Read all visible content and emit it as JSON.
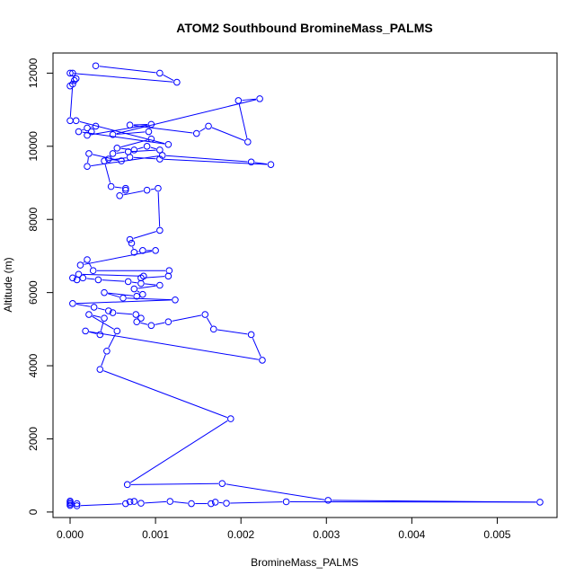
{
  "chart_data": {
    "type": "line",
    "title": "ATOM2 Southbound BromineMass_PALMS",
    "xlabel": "BromineMass_PALMS",
    "ylabel": "Altitude (m)",
    "xlim": [
      -0.0002,
      0.0057
    ],
    "ylim": [
      -150,
      12550
    ],
    "xticks": [
      0.0,
      0.001,
      0.002,
      0.003,
      0.004,
      0.005
    ],
    "xtick_labels": [
      "0.000",
      "0.001",
      "0.002",
      "0.003",
      "0.004",
      "0.005"
    ],
    "yticks": [
      0,
      2000,
      4000,
      6000,
      8000,
      10000,
      12000
    ],
    "ytick_labels": [
      "0",
      "2000",
      "4000",
      "6000",
      "8000",
      "10000",
      "12000"
    ],
    "grid": false,
    "legend": "none",
    "marker": "open-circle",
    "series": [
      {
        "color": "#0000ff",
        "points": [
          [
            0.0003,
            12200
          ],
          [
            0.00105,
            12000
          ],
          [
            0.00125,
            11750
          ],
          [
            0.0,
            12000
          ],
          [
            3e-05,
            12000
          ],
          [
            5e-05,
            11800
          ],
          [
            7e-05,
            11850
          ],
          [
            0.0,
            11650
          ],
          [
            3e-05,
            11700
          ],
          [
            0.0,
            10700
          ],
          [
            7e-05,
            10700
          ],
          [
            0.00115,
            10050
          ],
          [
            0.0001,
            10400
          ],
          [
            0.0002,
            10500
          ],
          [
            0.0003,
            10550
          ],
          [
            0.00025,
            10400
          ],
          [
            0.0002,
            10300
          ],
          [
            0.00095,
            10600
          ],
          [
            0.0007,
            10580
          ],
          [
            0.00148,
            10350
          ],
          [
            0.00162,
            10550
          ],
          [
            0.00208,
            10120
          ],
          [
            0.00197,
            11250
          ],
          [
            0.00222,
            11300
          ],
          [
            0.0005,
            10320
          ],
          [
            0.00092,
            10400
          ],
          [
            0.00095,
            10200
          ],
          [
            0.00055,
            9950
          ],
          [
            0.00075,
            9900
          ],
          [
            0.0009,
            10000
          ],
          [
            0.00105,
            9900
          ],
          [
            0.00068,
            9850
          ],
          [
            0.0005,
            9800
          ],
          [
            0.00045,
            9650
          ],
          [
            0.0006,
            9600
          ],
          [
            0.00022,
            9800
          ],
          [
            0.0002,
            9450
          ],
          [
            0.00108,
            9750
          ],
          [
            0.00212,
            9570
          ],
          [
            0.00235,
            9500
          ],
          [
            0.00105,
            9650
          ],
          [
            0.0007,
            9700
          ],
          [
            0.0004,
            9600
          ],
          [
            0.00048,
            8900
          ],
          [
            0.00065,
            8850
          ],
          [
            0.00065,
            8800
          ],
          [
            0.00058,
            8650
          ],
          [
            0.0009,
            8800
          ],
          [
            0.00103,
            8850
          ],
          [
            0.00105,
            7700
          ],
          [
            0.0007,
            7450
          ],
          [
            0.00072,
            7350
          ],
          [
            0.00075,
            7100
          ],
          [
            0.00085,
            7150
          ],
          [
            0.001,
            7150
          ],
          [
            0.00012,
            6750
          ],
          [
            0.0002,
            6900
          ],
          [
            0.00027,
            6600
          ],
          [
            0.00116,
            6600
          ],
          [
            0.00115,
            6450
          ],
          [
            0.00083,
            6400
          ],
          [
            0.00086,
            6450
          ],
          [
            0.0001,
            6500
          ],
          [
            3e-05,
            6400
          ],
          [
            8e-05,
            6350
          ],
          [
            0.00015,
            6400
          ],
          [
            0.00033,
            6350
          ],
          [
            0.00068,
            6300
          ],
          [
            0.00083,
            6250
          ],
          [
            0.00105,
            6200
          ],
          [
            0.00075,
            6100
          ],
          [
            0.00085,
            5950
          ],
          [
            0.00078,
            5900
          ],
          [
            0.0004,
            6000
          ],
          [
            0.00062,
            5850
          ],
          [
            0.00123,
            5800
          ],
          [
            3e-05,
            5700
          ],
          [
            0.00028,
            5600
          ],
          [
            0.00045,
            5500
          ],
          [
            0.0005,
            5450
          ],
          [
            0.00077,
            5400
          ],
          [
            0.00083,
            5300
          ],
          [
            0.00078,
            5200
          ],
          [
            0.00095,
            5100
          ],
          [
            0.00115,
            5200
          ],
          [
            0.00158,
            5400
          ],
          [
            0.00168,
            5000
          ],
          [
            0.00212,
            4850
          ],
          [
            0.00225,
            4150
          ],
          [
            0.00018,
            4950
          ],
          [
            0.00035,
            4850
          ],
          [
            0.0004,
            5300
          ],
          [
            0.00022,
            5400
          ],
          [
            0.00055,
            4950
          ],
          [
            0.00043,
            4400
          ],
          [
            0.00035,
            3900
          ],
          [
            0.00188,
            2550
          ],
          [
            0.00067,
            750
          ],
          [
            0.00178,
            780
          ],
          [
            0.00302,
            320
          ],
          [
            0.0055,
            270
          ],
          [
            0.00253,
            280
          ],
          [
            0.00183,
            240
          ],
          [
            0.0017,
            270
          ],
          [
            0.00165,
            230
          ],
          [
            0.00142,
            230
          ],
          [
            0.00117,
            290
          ],
          [
            0.00083,
            240
          ],
          [
            0.00075,
            290
          ],
          [
            0.0007,
            280
          ],
          [
            0.00065,
            230
          ],
          [
            8e-05,
            170
          ],
          [
            8e-05,
            230
          ],
          [
            0.0,
            180
          ],
          [
            0.0,
            220
          ],
          [
            0.0,
            260
          ],
          [
            0.0,
            300
          ]
        ]
      }
    ]
  }
}
